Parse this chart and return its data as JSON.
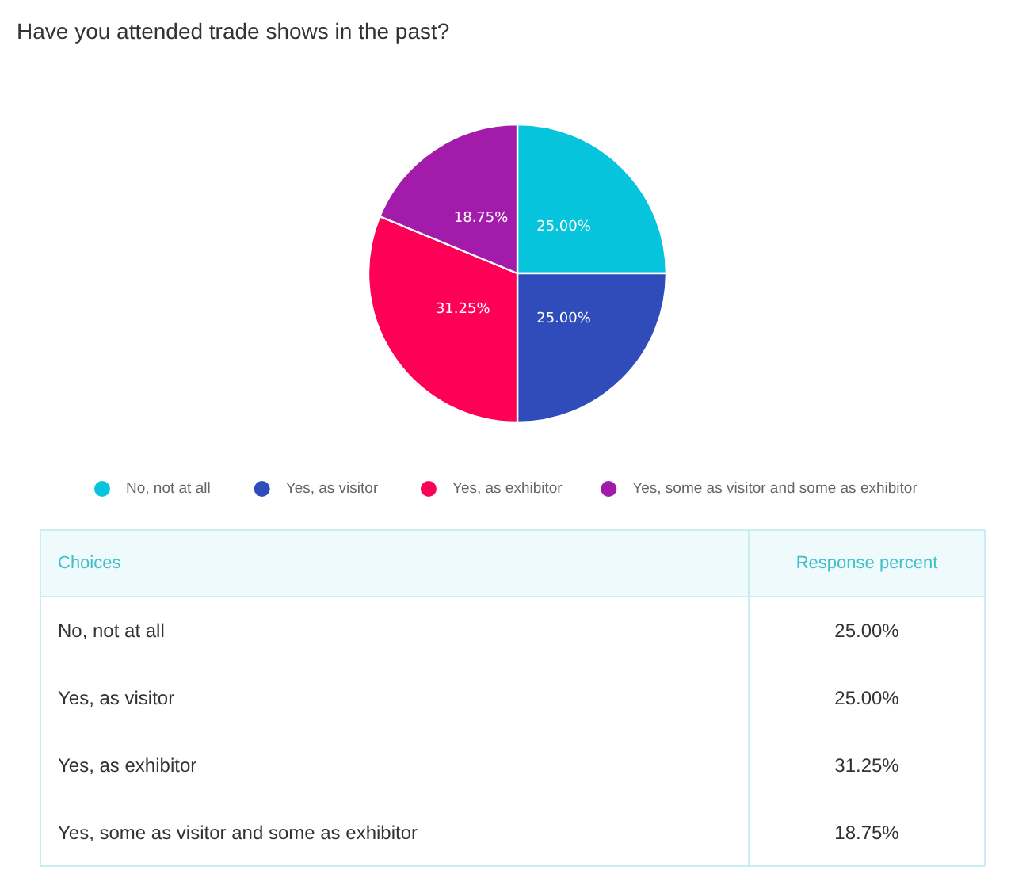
{
  "chart_data": {
    "type": "pie",
    "title": "Have you attended trade shows in the past?",
    "categories": [
      "No, not at all",
      "Yes, as visitor",
      "Yes, as exhibitor",
      "Yes, some as visitor and some as exhibitor"
    ],
    "values": [
      25,
      25,
      31.25,
      18.75
    ],
    "colors": [
      "#06c4dc",
      "#2f4cba",
      "#fe0157",
      "#a31bab"
    ],
    "value_labels": [
      "25.00%",
      "25.00%",
      "31.25%",
      "18.75%"
    ],
    "legend": "bottom",
    "annotations": [
      "Choices",
      "Response percent"
    ]
  }
}
